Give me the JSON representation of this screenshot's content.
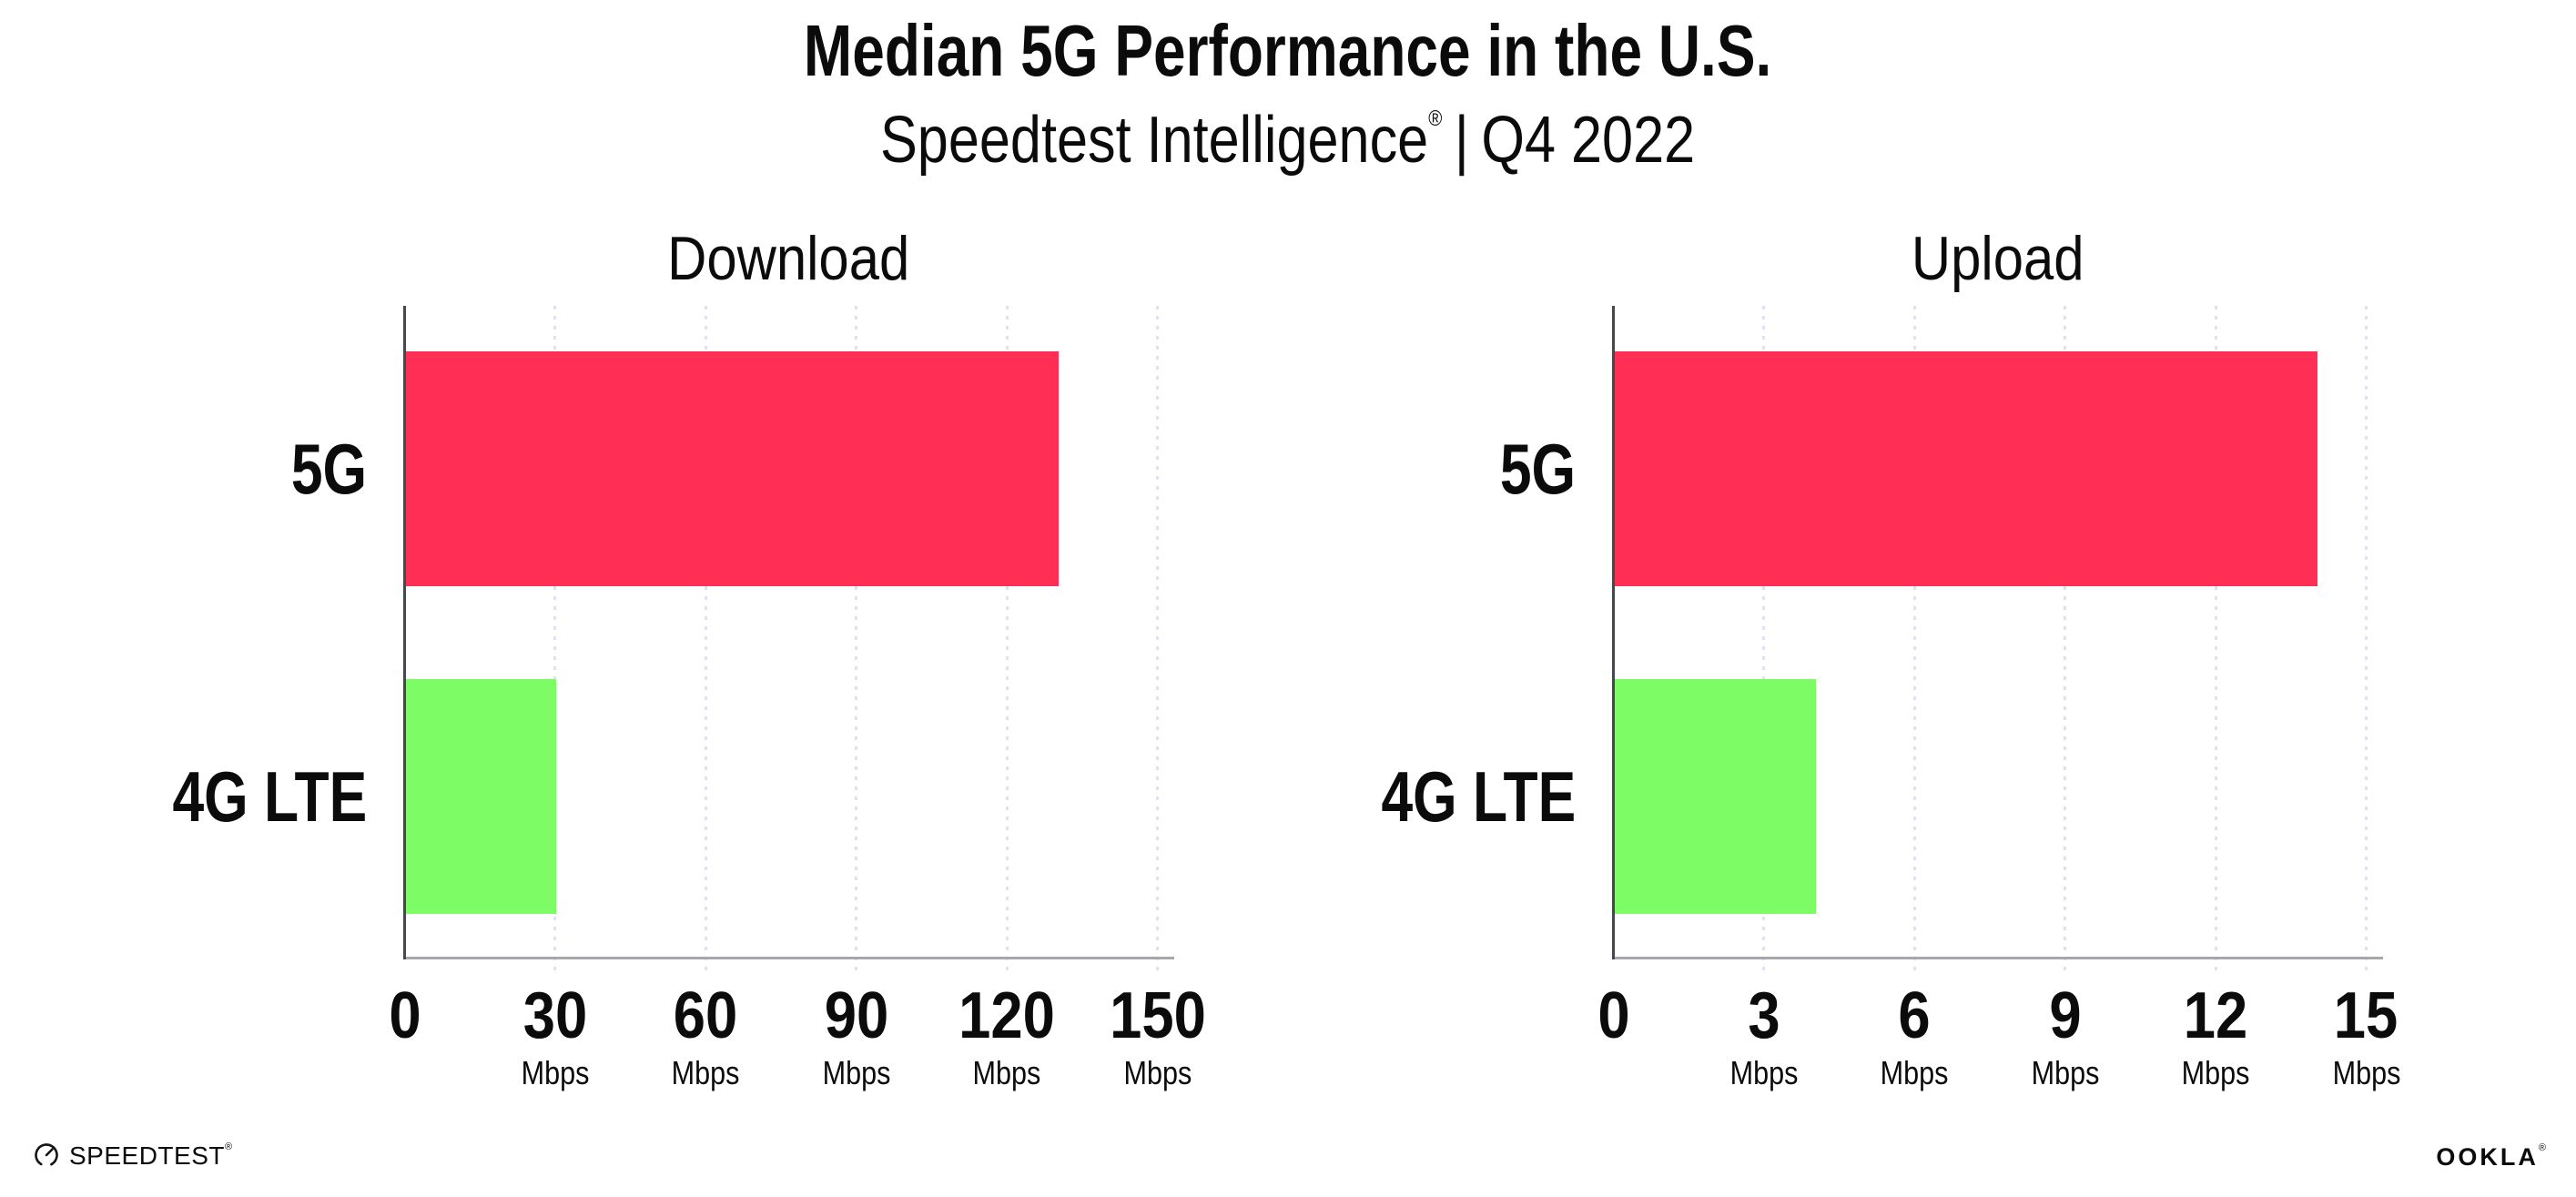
{
  "header": {
    "title": "Median 5G Performance in the U.S.",
    "brand": "Speedtest Intelligence",
    "registered_mark": "®",
    "separator": "|",
    "period": "Q4 2022"
  },
  "chart_data": [
    {
      "type": "bar",
      "orientation": "horizontal",
      "title": "Download",
      "categories": [
        "5G",
        "4G LTE"
      ],
      "values": [
        130,
        30
      ],
      "unit": "Mbps",
      "ticks": [
        0,
        30,
        60,
        90,
        120,
        150
      ],
      "xlim": [
        0,
        150
      ],
      "grid": "vertical-dotted",
      "legend": "none",
      "bar_colors": [
        "#FF2E55",
        "#7DFC66"
      ]
    },
    {
      "type": "bar",
      "orientation": "horizontal",
      "title": "Upload",
      "categories": [
        "5G",
        "4G LTE"
      ],
      "values": [
        14,
        4
      ],
      "unit": "Mbps",
      "ticks": [
        0,
        3,
        6,
        9,
        12,
        15
      ],
      "xlim": [
        0,
        15
      ],
      "grid": "vertical-dotted",
      "legend": "none",
      "bar_colors": [
        "#FF2E55",
        "#7DFC66"
      ]
    }
  ],
  "colors": {
    "bar_5g": "#FF2E55",
    "bar_4g_lte": "#7DFC66",
    "gridline": "#E1E1ED",
    "x_axis": "#A6A6AE",
    "y_axis": "#474750",
    "text": "#0B0B0C",
    "background": "#FFFFFF"
  },
  "footer": {
    "speedtest_label": "SPEEDTEST",
    "speedtest_mark": "®",
    "speedtest_icon": "speedtest-gauge-icon",
    "ookla_label": "OOKLA",
    "ookla_mark": "®"
  }
}
